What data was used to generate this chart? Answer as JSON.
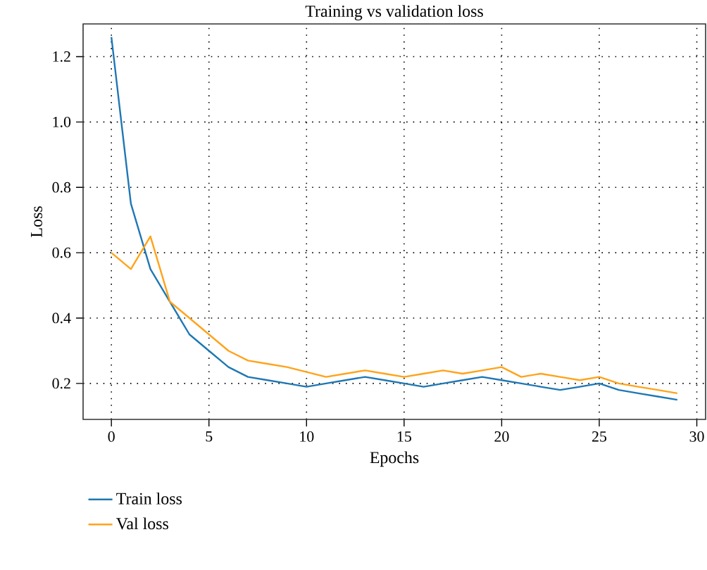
{
  "chart_data": {
    "type": "line",
    "title": "Training vs validation loss",
    "xlabel": "Epochs",
    "ylabel": "Loss",
    "x": [
      0,
      1,
      2,
      3,
      4,
      5,
      6,
      7,
      8,
      9,
      10,
      11,
      12,
      13,
      14,
      15,
      16,
      17,
      18,
      19,
      20,
      21,
      22,
      23,
      24,
      25,
      26,
      27,
      28,
      29
    ],
    "series": [
      {
        "name": "Train loss",
        "color": "#1f77b4",
        "values": [
          1.26,
          0.75,
          0.55,
          0.45,
          0.35,
          0.3,
          0.25,
          0.22,
          0.21,
          0.2,
          0.19,
          0.2,
          0.21,
          0.22,
          0.21,
          0.2,
          0.19,
          0.2,
          0.21,
          0.22,
          0.21,
          0.2,
          0.19,
          0.18,
          0.19,
          0.2,
          0.18,
          0.17,
          0.16,
          0.15
        ]
      },
      {
        "name": "Val loss",
        "color": "#ffa31a",
        "values": [
          0.6,
          0.55,
          0.65,
          0.45,
          0.4,
          0.35,
          0.3,
          0.27,
          0.26,
          0.25,
          0.235,
          0.22,
          0.23,
          0.24,
          0.23,
          0.22,
          0.23,
          0.24,
          0.23,
          0.24,
          0.25,
          0.22,
          0.23,
          0.22,
          0.21,
          0.22,
          0.2,
          0.19,
          0.18,
          0.17
        ]
      }
    ],
    "xlim": [
      -1.45,
      30.45
    ],
    "ylim": [
      0.09,
      1.3
    ],
    "xticks": [
      0,
      5,
      10,
      15,
      20,
      25,
      30
    ],
    "yticks": [
      {
        "value": 0.2,
        "label": "0.2"
      },
      {
        "value": 0.4,
        "label": "0.4"
      },
      {
        "value": 0.6,
        "label": "0.6"
      },
      {
        "value": 0.8,
        "label": "0.8"
      },
      {
        "value": 1.0,
        "label": "1.0"
      },
      {
        "value": 1.2,
        "label": "1.2"
      }
    ],
    "grid": true,
    "legend": "bottom left",
    "line_style": "solid",
    "marker": "none"
  }
}
